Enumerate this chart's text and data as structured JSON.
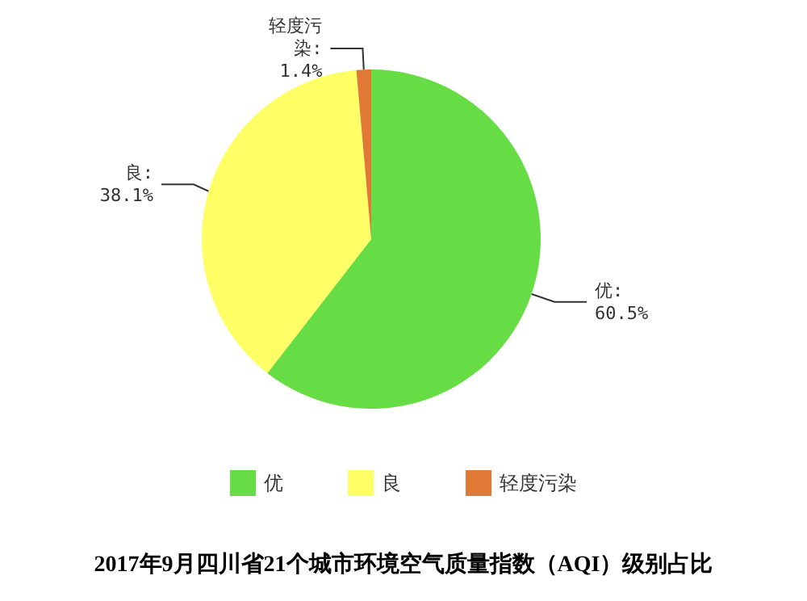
{
  "chart_data": {
    "type": "pie",
    "title": "2017年9月四川省21个城市环境空气质量指数（AQI）级别占比",
    "categories": [
      "优",
      "良",
      "轻度污染"
    ],
    "values": [
      60.5,
      38.1,
      1.4
    ],
    "colors": [
      "#66dd44",
      "#ffff66",
      "#e07836"
    ],
    "value_labels": [
      "优:\n60.5%",
      "良:\n38.1%",
      "轻度污染:\n1.4%"
    ],
    "legend": "bottom"
  }
}
